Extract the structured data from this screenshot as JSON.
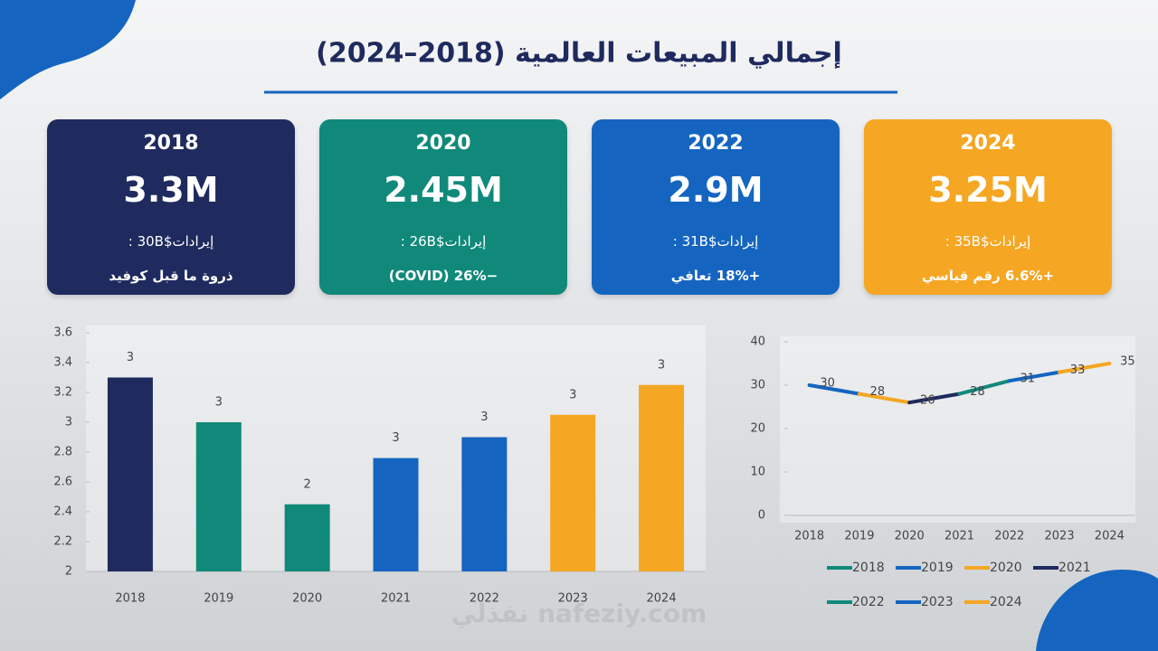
{
  "title": "إجمالي المبيعات العالمية (2018–2024)",
  "watermark": "نفذلي nafeziy.com",
  "cards": [
    {
      "year": "2018",
      "value": "3.3M",
      "revenue": "إيرادات$30B :",
      "note": "ذروة ما قبل كوفيد",
      "color": "#1f2a5e"
    },
    {
      "year": "2020",
      "value": "2.45M",
      "revenue": "إيرادات$26B :",
      "note": "−26% (COVID)",
      "color": "#10897a"
    },
    {
      "year": "2022",
      "value": "2.9M",
      "revenue": "إيرادات$31B :",
      "note": "+18% تعافي",
      "color": "#1565c0"
    },
    {
      "year": "2024",
      "value": "3.25M",
      "revenue": "إيرادات$35B :",
      "note": "+6.6% رقم قياسي",
      "color": "#f5a623"
    }
  ],
  "chart_data": [
    {
      "type": "bar",
      "categories": [
        "2018",
        "2019",
        "2020",
        "2021",
        "2022",
        "2023",
        "2024"
      ],
      "values": [
        3.3,
        3.0,
        2.45,
        2.76,
        2.9,
        3.05,
        3.25
      ],
      "value_labels": [
        "3",
        "3",
        "2",
        "3",
        "3",
        "3",
        "3"
      ],
      "colors": [
        "#1f2a5e",
        "#10897a",
        "#10897a",
        "#1565c0",
        "#1565c0",
        "#f5a623",
        "#f5a623"
      ],
      "ylim": [
        2,
        3.6
      ],
      "yticks": [
        2,
        2.2,
        2.4,
        2.6,
        2.8,
        3,
        3.2,
        3.4,
        3.6
      ]
    },
    {
      "type": "line",
      "categories": [
        "2018",
        "2019",
        "2020",
        "2021",
        "2022",
        "2023",
        "2024"
      ],
      "values": [
        30,
        28,
        26,
        28,
        31,
        33,
        35
      ],
      "legend": [
        {
          "name": "2018",
          "color": "#10897a"
        },
        {
          "name": "2019",
          "color": "#1565c0"
        },
        {
          "name": "2020",
          "color": "#f5a623"
        },
        {
          "name": "2021",
          "color": "#1f2a5e"
        },
        {
          "name": "2022",
          "color": "#10897a"
        },
        {
          "name": "2023",
          "color": "#1565c0"
        },
        {
          "name": "2024",
          "color": "#f5a623"
        }
      ],
      "ylim": [
        0,
        40
      ],
      "yticks": [
        0,
        10,
        20,
        30,
        40
      ]
    }
  ]
}
